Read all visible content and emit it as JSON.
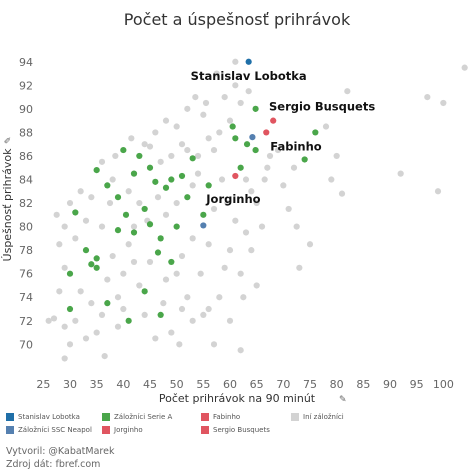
{
  "title": "Počet a úspešnosť prihrávok",
  "footer": {
    "author": "Vytvoril: @KabatMarek",
    "source": "Zdroj dát: fbref.com"
  },
  "colors": {
    "lobotka": "#1f6fa8",
    "neapol": "#5580b0",
    "serie_a": "#4aa64a",
    "highlight": "#e05560",
    "other": "#d3d3d3",
    "axis_text": "#666666",
    "annotation": "#111111"
  },
  "legend": [
    {
      "label": "Stanislav Lobotka",
      "color": "#1f6fa8"
    },
    {
      "label": "Záložníci Serie A",
      "color": "#4aa64a"
    },
    {
      "label": "Fabinho",
      "color": "#e05560"
    },
    {
      "label": "Iní záložníci",
      "color": "#d3d3d3"
    },
    {
      "label": "Záložníci SSC Neapol",
      "color": "#5580b0"
    },
    {
      "label": "Jorginho",
      "color": "#e05560"
    },
    {
      "label": "Sergio Busquets",
      "color": "#e05560"
    }
  ],
  "chart_data": {
    "type": "scatter",
    "title": "Počet a úspešnosť prihrávok",
    "xlabel": "Počet prihrávok na 90 minút",
    "ylabel": "Úspešnosť prihrávok",
    "xlim": [
      24,
      105
    ],
    "ylim": [
      68.5,
      95
    ],
    "x_ticks": [
      25,
      30,
      35,
      40,
      45,
      50,
      55,
      60,
      65,
      70,
      75,
      80,
      85,
      90,
      95,
      100
    ],
    "y_ticks": [
      70,
      72,
      74,
      76,
      78,
      80,
      82,
      84,
      86,
      88,
      90,
      92,
      94
    ],
    "grid": false,
    "annotations": [
      {
        "text": "Stanislav Lobotka",
        "x": 63.5,
        "y": 94.0
      },
      {
        "text": "Sergio Busquets",
        "x": 68.1,
        "y": 89.0
      },
      {
        "text": "Fabinho",
        "x": 66.8,
        "y": 88.0
      },
      {
        "text": "Jorginho",
        "x": 60.8,
        "y": 84.3
      }
    ],
    "series": [
      {
        "name": "Stanislav Lobotka",
        "color": "#1f6fa8",
        "points": [
          [
            63.5,
            94.0
          ]
        ]
      },
      {
        "name": "Záložníci SSC Neapol",
        "color": "#5580b0",
        "points": [
          [
            64.2,
            87.6
          ],
          [
            55.0,
            80.1
          ]
        ]
      },
      {
        "name": "Fabinho",
        "color": "#e05560",
        "points": [
          [
            66.8,
            88.0
          ]
        ]
      },
      {
        "name": "Sergio Busquets",
        "color": "#e05560",
        "points": [
          [
            68.1,
            89.0
          ]
        ]
      },
      {
        "name": "Jorginho",
        "color": "#e05560",
        "points": [
          [
            61.0,
            84.3
          ]
        ]
      },
      {
        "name": "Záložníci Serie A",
        "color": "#4aa64a",
        "points": [
          [
            64.8,
            90.0
          ],
          [
            61.0,
            87.5
          ],
          [
            64.8,
            86.5
          ],
          [
            63.2,
            87.0
          ],
          [
            76.0,
            88.0
          ],
          [
            74.0,
            85.7
          ],
          [
            62.0,
            85.0
          ],
          [
            53.0,
            85.8
          ],
          [
            45.0,
            85.0
          ],
          [
            43.0,
            86.0
          ],
          [
            40.0,
            86.5
          ],
          [
            42.0,
            84.5
          ],
          [
            49.0,
            84.0
          ],
          [
            51.0,
            84.3
          ],
          [
            48.0,
            83.3
          ],
          [
            52.0,
            82.5
          ],
          [
            46.0,
            83.8
          ],
          [
            35.0,
            84.8
          ],
          [
            37.0,
            83.5
          ],
          [
            39.0,
            82.5
          ],
          [
            40.5,
            81.0
          ],
          [
            44.0,
            81.5
          ],
          [
            45.0,
            80.2
          ],
          [
            50.0,
            80.0
          ],
          [
            55.0,
            81.0
          ],
          [
            47.0,
            79.0
          ],
          [
            42.0,
            79.5
          ],
          [
            31.0,
            81.2
          ],
          [
            34.0,
            76.8
          ],
          [
            30.0,
            76.0
          ],
          [
            35.0,
            76.5
          ],
          [
            35.0,
            77.3
          ],
          [
            46.5,
            77.8
          ],
          [
            49.0,
            77.0
          ],
          [
            44.0,
            74.5
          ],
          [
            37.0,
            73.5
          ],
          [
            30.0,
            73.0
          ],
          [
            41.0,
            72.0
          ],
          [
            47.0,
            72.5
          ],
          [
            33.0,
            78.0
          ],
          [
            56.0,
            83.5
          ],
          [
            60.5,
            88.5
          ],
          [
            39.0,
            79.7
          ]
        ]
      },
      {
        "name": "Iní záložníci",
        "color": "#d3d3d3",
        "points": [
          [
            104.0,
            93.5
          ],
          [
            100.0,
            90.5
          ],
          [
            97.0,
            91.0
          ],
          [
            82.0,
            91.5
          ],
          [
            78.0,
            88.5
          ],
          [
            80.0,
            86.0
          ],
          [
            79.0,
            84.0
          ],
          [
            81.0,
            82.8
          ],
          [
            92.0,
            84.5
          ],
          [
            99.0,
            83.0
          ],
          [
            69.0,
            86.5
          ],
          [
            72.0,
            85.0
          ],
          [
            70.0,
            83.5
          ],
          [
            67.0,
            85.0
          ],
          [
            71.0,
            81.5
          ],
          [
            72.5,
            80.0
          ],
          [
            75.0,
            78.5
          ],
          [
            73.0,
            76.5
          ],
          [
            61.0,
            92.0
          ],
          [
            59.0,
            91.0
          ],
          [
            57.5,
            93.0
          ],
          [
            62.0,
            90.5
          ],
          [
            60.0,
            89.0
          ],
          [
            58.0,
            88.0
          ],
          [
            56.0,
            87.5
          ],
          [
            55.0,
            89.5
          ],
          [
            52.0,
            90.0
          ],
          [
            50.0,
            88.5
          ],
          [
            48.0,
            89.0
          ],
          [
            46.0,
            88.0
          ],
          [
            44.0,
            87.0
          ],
          [
            54.0,
            86.0
          ],
          [
            51.0,
            87.0
          ],
          [
            57.0,
            86.5
          ],
          [
            58.5,
            84.0
          ],
          [
            59.5,
            82.0
          ],
          [
            57.0,
            81.5
          ],
          [
            61.0,
            80.5
          ],
          [
            63.0,
            79.5
          ],
          [
            60.0,
            78.0
          ],
          [
            62.0,
            76.0
          ],
          [
            65.0,
            75.0
          ],
          [
            58.0,
            74.0
          ],
          [
            56.0,
            73.0
          ],
          [
            60.0,
            72.0
          ],
          [
            57.0,
            70.0
          ],
          [
            62.0,
            69.5
          ],
          [
            53.0,
            79.0
          ],
          [
            51.0,
            77.5
          ],
          [
            50.0,
            76.0
          ],
          [
            48.0,
            75.5
          ],
          [
            52.0,
            74.0
          ],
          [
            55.0,
            72.5
          ],
          [
            49.0,
            71.0
          ],
          [
            46.0,
            70.5
          ],
          [
            44.0,
            72.5
          ],
          [
            43.0,
            75.0
          ],
          [
            42.0,
            77.0
          ],
          [
            41.0,
            78.5
          ],
          [
            40.0,
            76.0
          ],
          [
            38.0,
            77.5
          ],
          [
            37.0,
            75.5
          ],
          [
            39.0,
            74.0
          ],
          [
            36.0,
            72.5
          ],
          [
            35.0,
            71.0
          ],
          [
            33.0,
            70.5
          ],
          [
            34.0,
            73.5
          ],
          [
            32.0,
            74.5
          ],
          [
            31.0,
            72.0
          ],
          [
            30.0,
            70.0
          ],
          [
            29.0,
            71.5
          ],
          [
            28.0,
            74.5
          ],
          [
            27.0,
            72.2
          ],
          [
            26.0,
            72.0
          ],
          [
            29.0,
            76.5
          ],
          [
            28.0,
            78.5
          ],
          [
            31.0,
            79.0
          ],
          [
            33.0,
            80.5
          ],
          [
            34.0,
            82.5
          ],
          [
            36.0,
            80.0
          ],
          [
            37.5,
            82.0
          ],
          [
            38.0,
            84.0
          ],
          [
            32.0,
            83.0
          ],
          [
            30.0,
            82.0
          ],
          [
            29.0,
            80.0
          ],
          [
            27.5,
            81.0
          ],
          [
            41.0,
            83.0
          ],
          [
            43.0,
            82.0
          ],
          [
            44.5,
            80.5
          ],
          [
            46.5,
            82.5
          ],
          [
            48.0,
            81.0
          ],
          [
            50.0,
            82.0
          ],
          [
            53.0,
            83.5
          ],
          [
            54.0,
            84.5
          ],
          [
            47.0,
            85.5
          ],
          [
            49.0,
            86.0
          ],
          [
            52.0,
            86.5
          ],
          [
            45.0,
            86.8
          ],
          [
            53.5,
            91.0
          ],
          [
            55.5,
            90.5
          ],
          [
            61.0,
            94.0
          ],
          [
            63.5,
            91.5
          ],
          [
            65.0,
            82.0
          ],
          [
            66.0,
            80.0
          ],
          [
            64.0,
            78.0
          ],
          [
            62.5,
            74.0
          ],
          [
            59.0,
            76.5
          ],
          [
            56.0,
            78.5
          ],
          [
            54.5,
            76.0
          ],
          [
            53.0,
            72.0
          ],
          [
            51.0,
            73.0
          ],
          [
            45.0,
            77.0
          ],
          [
            42.0,
            80.0
          ],
          [
            39.0,
            71.5
          ],
          [
            36.5,
            69.0
          ],
          [
            40.0,
            73.0
          ],
          [
            47.5,
            73.5
          ],
          [
            50.5,
            70.0
          ],
          [
            38.5,
            86.0
          ],
          [
            36.0,
            85.5
          ],
          [
            41.5,
            87.5
          ],
          [
            63.0,
            84.0
          ],
          [
            66.5,
            84.0
          ],
          [
            67.5,
            86.0
          ],
          [
            64.0,
            83.0
          ],
          [
            29.0,
            68.8
          ]
        ]
      }
    ]
  }
}
